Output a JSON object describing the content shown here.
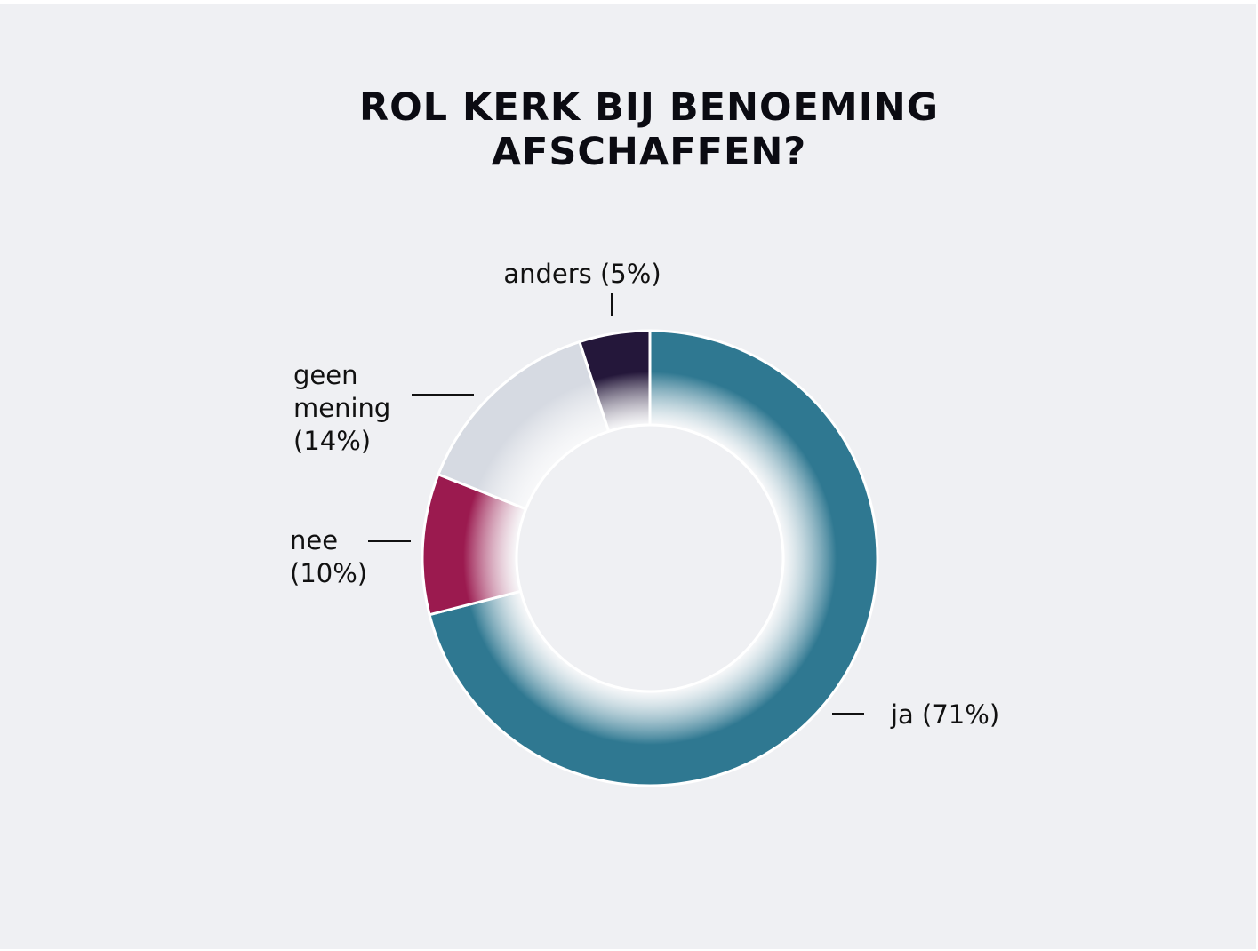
{
  "title_line1": "ROL KERK BIJ BENOEMING",
  "title_line2": "AFSCHAFFEN?",
  "chart_data": {
    "type": "pie",
    "title": "ROL KERK BIJ BENOEMING AFSCHAFFEN?",
    "donut": true,
    "slices": [
      {
        "label": "ja (71%)",
        "value": 71,
        "color": "#2f7891",
        "label_lines": [
          "ja (71%)"
        ]
      },
      {
        "label": "nee (10%)",
        "value": 10,
        "color": "#9b1a4f",
        "label_lines": [
          "nee",
          "(10%)"
        ]
      },
      {
        "label": "geen mening (14%)",
        "value": 14,
        "color": "#d6dae2",
        "label_lines": [
          "geen",
          "mening",
          "(14%)"
        ]
      },
      {
        "label": "anders (5%)",
        "value": 5,
        "color": "#24173a",
        "label_lines": [
          "anders (5%)"
        ]
      }
    ]
  }
}
